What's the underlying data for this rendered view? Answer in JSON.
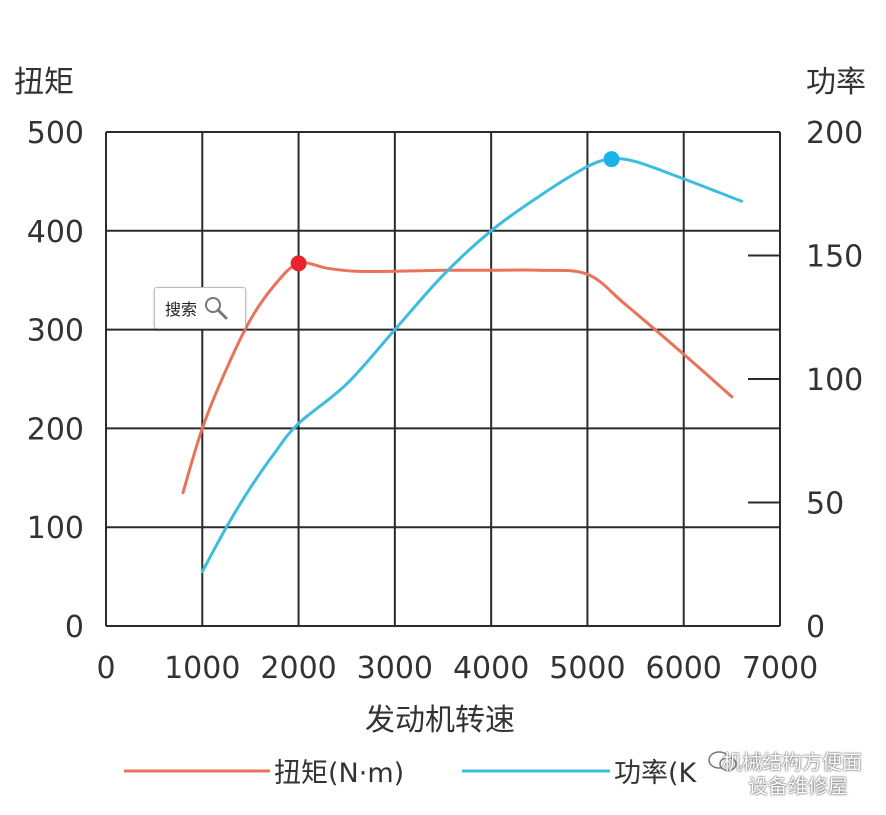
{
  "chart_data": {
    "type": "line",
    "xlabel": "发动机转速",
    "ylabel_left": "扭矩",
    "ylabel_right": "功率",
    "x_ticks": [
      "0",
      "1000",
      "2000",
      "3000",
      "4000",
      "5000",
      "6000",
      "7000"
    ],
    "y_left_ticks": [
      "0",
      "100",
      "200",
      "300",
      "400",
      "500"
    ],
    "y_right_ticks": [
      "0",
      "50",
      "100",
      "150",
      "200"
    ],
    "xlim": [
      0,
      7000
    ],
    "ylim_left": [
      0,
      500
    ],
    "ylim_right": [
      0,
      200
    ],
    "grid": true,
    "legend_position": "bottom",
    "series": [
      {
        "name": "扭矩(N·m)",
        "axis": "left",
        "color": "#e8735a",
        "marker_color": "#e8232b",
        "peak": [
          2000,
          367
        ],
        "x": [
          800,
          1000,
          1250,
          1500,
          1750,
          2000,
          2300,
          2600,
          3000,
          3500,
          4000,
          4500,
          5000,
          5400,
          6000,
          6500
        ],
        "y": [
          135,
          200,
          260,
          310,
          345,
          367,
          362,
          359,
          359,
          360,
          360,
          360,
          356,
          325,
          275,
          232
        ]
      },
      {
        "name": "功率(K",
        "axis": "right",
        "color": "#3bbde0",
        "marker_color": "#1ab2e8",
        "peak": [
          5250,
          189
        ],
        "x": [
          1000,
          1250,
          1500,
          1750,
          2000,
          2500,
          3000,
          3500,
          4000,
          4500,
          5000,
          5250,
          5500,
          6000,
          6600
        ],
        "y": [
          22,
          40,
          56,
          70,
          82,
          98,
          120,
          142,
          160,
          174,
          186,
          189,
          188,
          181,
          172
        ]
      }
    ]
  },
  "overlay": {
    "search_label": "搜索",
    "watermark_line1": "机械结构方便面",
    "watermark_line2": "设备维修屋"
  }
}
